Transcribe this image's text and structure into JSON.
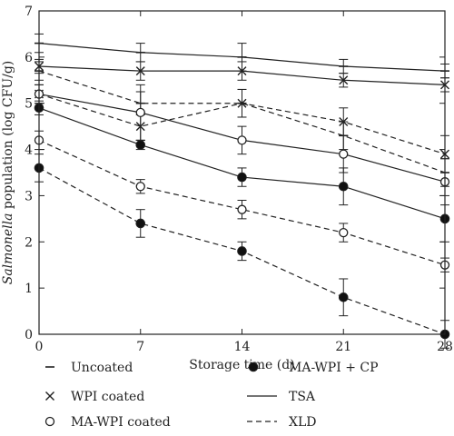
{
  "chart_data": {
    "type": "line",
    "title": "",
    "xlabel": "Storage time (d)",
    "ylabel_italic": "Salmonella",
    "ylabel_rest": " population (log CFU/g)",
    "x": [
      0,
      7,
      14,
      21,
      28
    ],
    "x_ticks": [
      "0",
      "7",
      "14",
      "21",
      "28"
    ],
    "y_ticks": [
      "0",
      "1",
      "2",
      "3",
      "4",
      "5",
      "6",
      "7"
    ],
    "xlim": [
      0,
      28
    ],
    "ylim": [
      0,
      7
    ],
    "grid": false,
    "series": [
      {
        "name": "Uncoated",
        "medium": "TSA",
        "marker": "dash",
        "values": [
          6.3,
          6.1,
          6.0,
          5.8,
          5.7
        ],
        "errors": [
          0.2,
          0.2,
          0.3,
          0.15,
          0.15
        ]
      },
      {
        "name": "Uncoated",
        "medium": "XLD",
        "marker": "dash",
        "values": [
          5.7,
          5.0,
          5.0,
          4.3,
          3.5
        ],
        "errors": [
          0.2,
          0.25,
          0.3,
          0.3,
          0.3
        ]
      },
      {
        "name": "WPI coated",
        "medium": "TSA",
        "marker": "x",
        "values": [
          5.8,
          5.7,
          5.7,
          5.5,
          5.4
        ],
        "errors": [
          0.15,
          0.2,
          0.2,
          0.15,
          0.15
        ]
      },
      {
        "name": "WPI coated",
        "medium": "XLD",
        "marker": "x",
        "values": [
          5.2,
          4.5,
          5.0,
          4.6,
          3.9
        ],
        "errors": [
          0.2,
          0.3,
          0.3,
          0.3,
          0.4
        ]
      },
      {
        "name": "MA-WPI coated",
        "medium": "TSA",
        "marker": "circle",
        "values": [
          5.2,
          4.8,
          4.2,
          3.9,
          3.3
        ],
        "errors": [
          0.2,
          0.6,
          0.3,
          0.4,
          0.5
        ]
      },
      {
        "name": "MA-WPI coated",
        "medium": "XLD",
        "marker": "circle",
        "values": [
          4.2,
          3.2,
          2.7,
          2.2,
          1.5
        ],
        "errors": [
          0.2,
          0.15,
          0.2,
          0.2,
          0.15
        ]
      },
      {
        "name": "MA-WPI + CP",
        "medium": "TSA",
        "marker": "dot",
        "values": [
          4.9,
          4.1,
          3.4,
          3.2,
          2.5
        ],
        "errors": [
          0.15,
          0.1,
          0.2,
          0.4,
          0.5
        ]
      },
      {
        "name": "MA-WPI + CP",
        "medium": "XLD",
        "marker": "dot",
        "values": [
          3.6,
          2.4,
          1.8,
          0.8,
          0.0
        ],
        "errors": [
          0.3,
          0.3,
          0.2,
          0.4,
          0.3
        ]
      }
    ],
    "legend": {
      "placement": "bottom",
      "items": [
        {
          "label": "Uncoated",
          "symbol": "dash"
        },
        {
          "label": "WPI coated",
          "symbol": "x"
        },
        {
          "label": "MA-WPI coated",
          "symbol": "circle"
        },
        {
          "label": "MA-WPI + CP",
          "symbol": "dot"
        },
        {
          "label": "TSA",
          "symbol": "solid-line"
        },
        {
          "label": "XLD",
          "symbol": "dashed-line"
        }
      ]
    },
    "line_styles": {
      "TSA": "solid",
      "XLD": "dashed"
    },
    "colors": {
      "line": "#222222",
      "open_marker_fill": "#ffffff",
      "filled_marker": "#111111"
    }
  }
}
